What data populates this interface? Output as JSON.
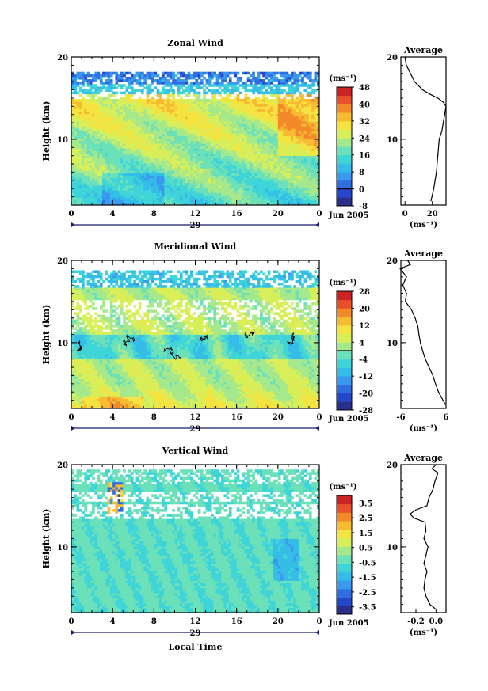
{
  "colors": {
    "scale": [
      "#2b2f8a",
      "#2448c8",
      "#2f6ee0",
      "#3a98ee",
      "#35bde8",
      "#3fd4d8",
      "#6ce0b8",
      "#a6e98c",
      "#d8ef5a",
      "#f5e342",
      "#f7bb32",
      "#f38a2a",
      "#e8502a",
      "#cc2424"
    ],
    "contour": "#000000",
    "background": "#ffffff"
  },
  "chart_data": [
    {
      "type": "heatmap",
      "title": "Zonal Wind",
      "xlabel": "",
      "ylabel": "Height (km)",
      "xlim": [
        0,
        24
      ],
      "ylim": [
        2,
        20
      ],
      "xticks": [
        "0",
        "4",
        "8",
        "12",
        "16",
        "20",
        "0"
      ],
      "yticks": [
        "10",
        "20"
      ],
      "date_marker": "29",
      "date_label": "Jun 2005",
      "colorbar": {
        "unit": "(ms⁻¹)",
        "ticks": [
          "48",
          "40",
          "32",
          "24",
          "16",
          "8",
          "0",
          "-8"
        ],
        "min": -8,
        "max": 48,
        "zero_line": 0
      },
      "profile": {
        "title": "Average",
        "xlabel": "(ms⁻¹)",
        "xticks": [
          "0",
          "20"
        ],
        "xlim": [
          -3,
          30
        ],
        "yticks": [
          "10",
          "20"
        ],
        "heights": [
          2.5,
          4,
          6,
          8,
          10,
          11,
          12,
          13,
          14,
          14.5,
          15,
          15.5,
          16,
          17,
          18,
          19,
          20
        ],
        "values": [
          19,
          21,
          23,
          24,
          25,
          27,
          28,
          29,
          30,
          28,
          24,
          18,
          13,
          7,
          4,
          1,
          0
        ]
      }
    },
    {
      "type": "heatmap",
      "title": "Meridional Wind",
      "xlabel": "",
      "ylabel": "Height (km)",
      "xlim": [
        0,
        24
      ],
      "ylim": [
        2,
        20
      ],
      "xticks": [
        "0",
        "4",
        "8",
        "12",
        "16",
        "20",
        "0"
      ],
      "yticks": [
        "10",
        "20"
      ],
      "date_marker": "29",
      "date_label": "Jun 2005",
      "colorbar": {
        "unit": "(ms⁻¹)",
        "ticks": [
          "28",
          "20",
          "12",
          "4",
          "-4",
          "-12",
          "-20",
          "-28"
        ],
        "min": -28,
        "max": 28,
        "zero_line": 0
      },
      "profile": {
        "title": "Average",
        "xlabel": "(ms⁻¹)",
        "xticks": [
          "-6",
          "6"
        ],
        "xlim": [
          -6,
          6
        ],
        "yticks": [
          "10",
          "20"
        ],
        "heights": [
          2.5,
          3,
          4,
          5,
          6,
          7,
          8,
          9,
          10,
          11,
          12,
          13,
          14,
          15,
          16,
          17,
          18,
          19,
          19.5,
          20
        ],
        "values": [
          5.8,
          5.2,
          4.0,
          3.2,
          2.5,
          1.5,
          0.5,
          -0.2,
          -0.8,
          -1.2,
          -1.5,
          -2.2,
          -3.2,
          -4.8,
          -4.5,
          -5.5,
          -4.5,
          -6.2,
          -3.5,
          -4.2
        ]
      }
    },
    {
      "type": "heatmap",
      "title": "Vertical Wind",
      "xlabel": "Local Time",
      "ylabel": "Height (km)",
      "xlim": [
        0,
        24
      ],
      "ylim": [
        2,
        20
      ],
      "xticks": [
        "0",
        "4",
        "8",
        "12",
        "16",
        "20",
        "0"
      ],
      "yticks": [
        "10",
        "20"
      ],
      "date_marker": "29",
      "date_label": "Jun 2005",
      "colorbar": {
        "unit": "(ms⁻¹)",
        "ticks": [
          "3.5",
          "2.5",
          "1.5",
          "0.5",
          "-0.5",
          "-1.5",
          "-2.5",
          "-3.5"
        ],
        "min": -4,
        "max": 4,
        "zero_line": null
      },
      "profile": {
        "title": "Average",
        "xlabel": "(ms⁻¹)",
        "xticks": [
          "-0.2",
          "0.0"
        ],
        "xlim": [
          -0.35,
          0.1
        ],
        "yticks": [
          "10",
          "20"
        ],
        "heights": [
          2.5,
          3,
          4,
          5,
          6,
          7,
          8,
          9,
          10,
          11,
          12,
          13,
          13.5,
          14,
          14.5,
          15,
          16,
          17,
          18,
          19,
          19.5,
          20
        ],
        "values": [
          -0.01,
          -0.06,
          -0.1,
          -0.12,
          -0.11,
          -0.09,
          -0.12,
          -0.1,
          -0.08,
          -0.12,
          -0.1,
          -0.11,
          -0.22,
          -0.26,
          -0.2,
          -0.09,
          -0.07,
          -0.03,
          -0.01,
          0.02,
          -0.04,
          0.0
        ]
      }
    }
  ]
}
